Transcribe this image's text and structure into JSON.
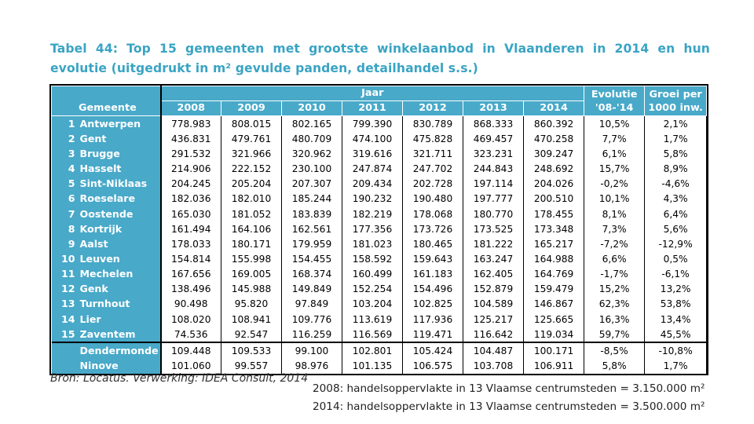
{
  "title": "Tabel 44: Top 15 gemeenten met grootste winkelaanbod in Vlaanderen in 2014 en hun evolutie (uitgedrukt in m² gevulde panden, detailhandel s.s.)",
  "table": {
    "headers": {
      "gemeente": "Gemeente",
      "jaar": "Jaar",
      "years": [
        "2008",
        "2009",
        "2010",
        "2011",
        "2012",
        "2013",
        "2014"
      ],
      "evolutie_1": "Evolutie",
      "evolutie_2": "'08-'14",
      "groei_1": "Groei per",
      "groei_2": "1000 inw."
    },
    "rows": [
      {
        "rank": "1",
        "name": "Antwerpen",
        "values": [
          "778.983",
          "808.015",
          "802.165",
          "799.390",
          "830.789",
          "868.333",
          "860.392"
        ],
        "evolutie": "10,5%",
        "groei": "2,1%"
      },
      {
        "rank": "2",
        "name": "Gent",
        "values": [
          "436.831",
          "479.761",
          "480.709",
          "474.100",
          "475.828",
          "469.457",
          "470.258"
        ],
        "evolutie": "7,7%",
        "groei": "1,7%"
      },
      {
        "rank": "3",
        "name": "Brugge",
        "values": [
          "291.532",
          "321.966",
          "320.962",
          "319.616",
          "321.711",
          "323.231",
          "309.247"
        ],
        "evolutie": "6,1%",
        "groei": "5,8%"
      },
      {
        "rank": "4",
        "name": "Hasselt",
        "values": [
          "214.906",
          "222.152",
          "230.100",
          "247.874",
          "247.702",
          "244.843",
          "248.692"
        ],
        "evolutie": "15,7%",
        "groei": "8,9%"
      },
      {
        "rank": "5",
        "name": "Sint-Niklaas",
        "values": [
          "204.245",
          "205.204",
          "207.307",
          "209.434",
          "202.728",
          "197.114",
          "204.026"
        ],
        "evolutie": "-0,2%",
        "groei": "-4,6%"
      },
      {
        "rank": "6",
        "name": "Roeselare",
        "values": [
          "182.036",
          "182.010",
          "185.244",
          "190.232",
          "190.480",
          "197.777",
          "200.510"
        ],
        "evolutie": "10,1%",
        "groei": "4,3%"
      },
      {
        "rank": "7",
        "name": "Oostende",
        "values": [
          "165.030",
          "181.052",
          "183.839",
          "182.219",
          "178.068",
          "180.770",
          "178.455"
        ],
        "evolutie": "8,1%",
        "groei": "6,4%"
      },
      {
        "rank": "8",
        "name": "Kortrijk",
        "values": [
          "161.494",
          "164.106",
          "162.561",
          "177.356",
          "173.726",
          "173.525",
          "173.348"
        ],
        "evolutie": "7,3%",
        "groei": "5,6%"
      },
      {
        "rank": "9",
        "name": "Aalst",
        "values": [
          "178.033",
          "180.171",
          "179.959",
          "181.023",
          "180.465",
          "181.222",
          "165.217"
        ],
        "evolutie": "-7,2%",
        "groei": "-12,9%"
      },
      {
        "rank": "10",
        "name": "Leuven",
        "values": [
          "154.814",
          "155.998",
          "154.455",
          "158.592",
          "159.643",
          "163.247",
          "164.988"
        ],
        "evolutie": "6,6%",
        "groei": "0,5%"
      },
      {
        "rank": "11",
        "name": "Mechelen",
        "values": [
          "167.656",
          "169.005",
          "168.374",
          "160.499",
          "161.183",
          "162.405",
          "164.769"
        ],
        "evolutie": "-1,7%",
        "groei": "-6,1%"
      },
      {
        "rank": "12",
        "name": "Genk",
        "values": [
          "138.496",
          "145.988",
          "149.849",
          "152.254",
          "154.496",
          "152.879",
          "159.479"
        ],
        "evolutie": "15,2%",
        "groei": "13,2%"
      },
      {
        "rank": "13",
        "name": "Turnhout",
        "values": [
          "90.498",
          "95.820",
          "97.849",
          "103.204",
          "102.825",
          "104.589",
          "146.867"
        ],
        "evolutie": "62,3%",
        "groei": "53,8%"
      },
      {
        "rank": "14",
        "name": "Lier",
        "values": [
          "108.020",
          "108.941",
          "109.776",
          "113.619",
          "117.936",
          "125.217",
          "125.665"
        ],
        "evolutie": "16,3%",
        "groei": "13,4%"
      },
      {
        "rank": "15",
        "name": "Zaventem",
        "values": [
          "74.536",
          "92.547",
          "116.259",
          "116.569",
          "119.471",
          "116.642",
          "119.034"
        ],
        "evolutie": "59,7%",
        "groei": "45,5%"
      }
    ],
    "extra_rows": [
      {
        "name": "Dendermonde",
        "values": [
          "109.448",
          "109.533",
          "99.100",
          "102.801",
          "105.424",
          "104.487",
          "100.171"
        ],
        "evolutie": "-8,5%",
        "groei": "-10,8%"
      },
      {
        "name": "Ninove",
        "values": [
          "101.060",
          "99.557",
          "98.976",
          "101.135",
          "106.575",
          "103.708",
          "106.911"
        ],
        "evolutie": "5,8%",
        "groei": "1,7%"
      }
    ]
  },
  "source": "Bron: Locatus. Verwerking: IDEA Consult, 2014",
  "notes": [
    "2008: handelsoppervlakte in 13 Vlaamse centrumsteden = 3.150.000 m²",
    "2014: handelsoppervlakte in 13 Vlaamse centrumsteden = 3.500.000 m²"
  ],
  "colors": {
    "title": "#3aa4c4",
    "header_bg": "#48a9c9"
  }
}
